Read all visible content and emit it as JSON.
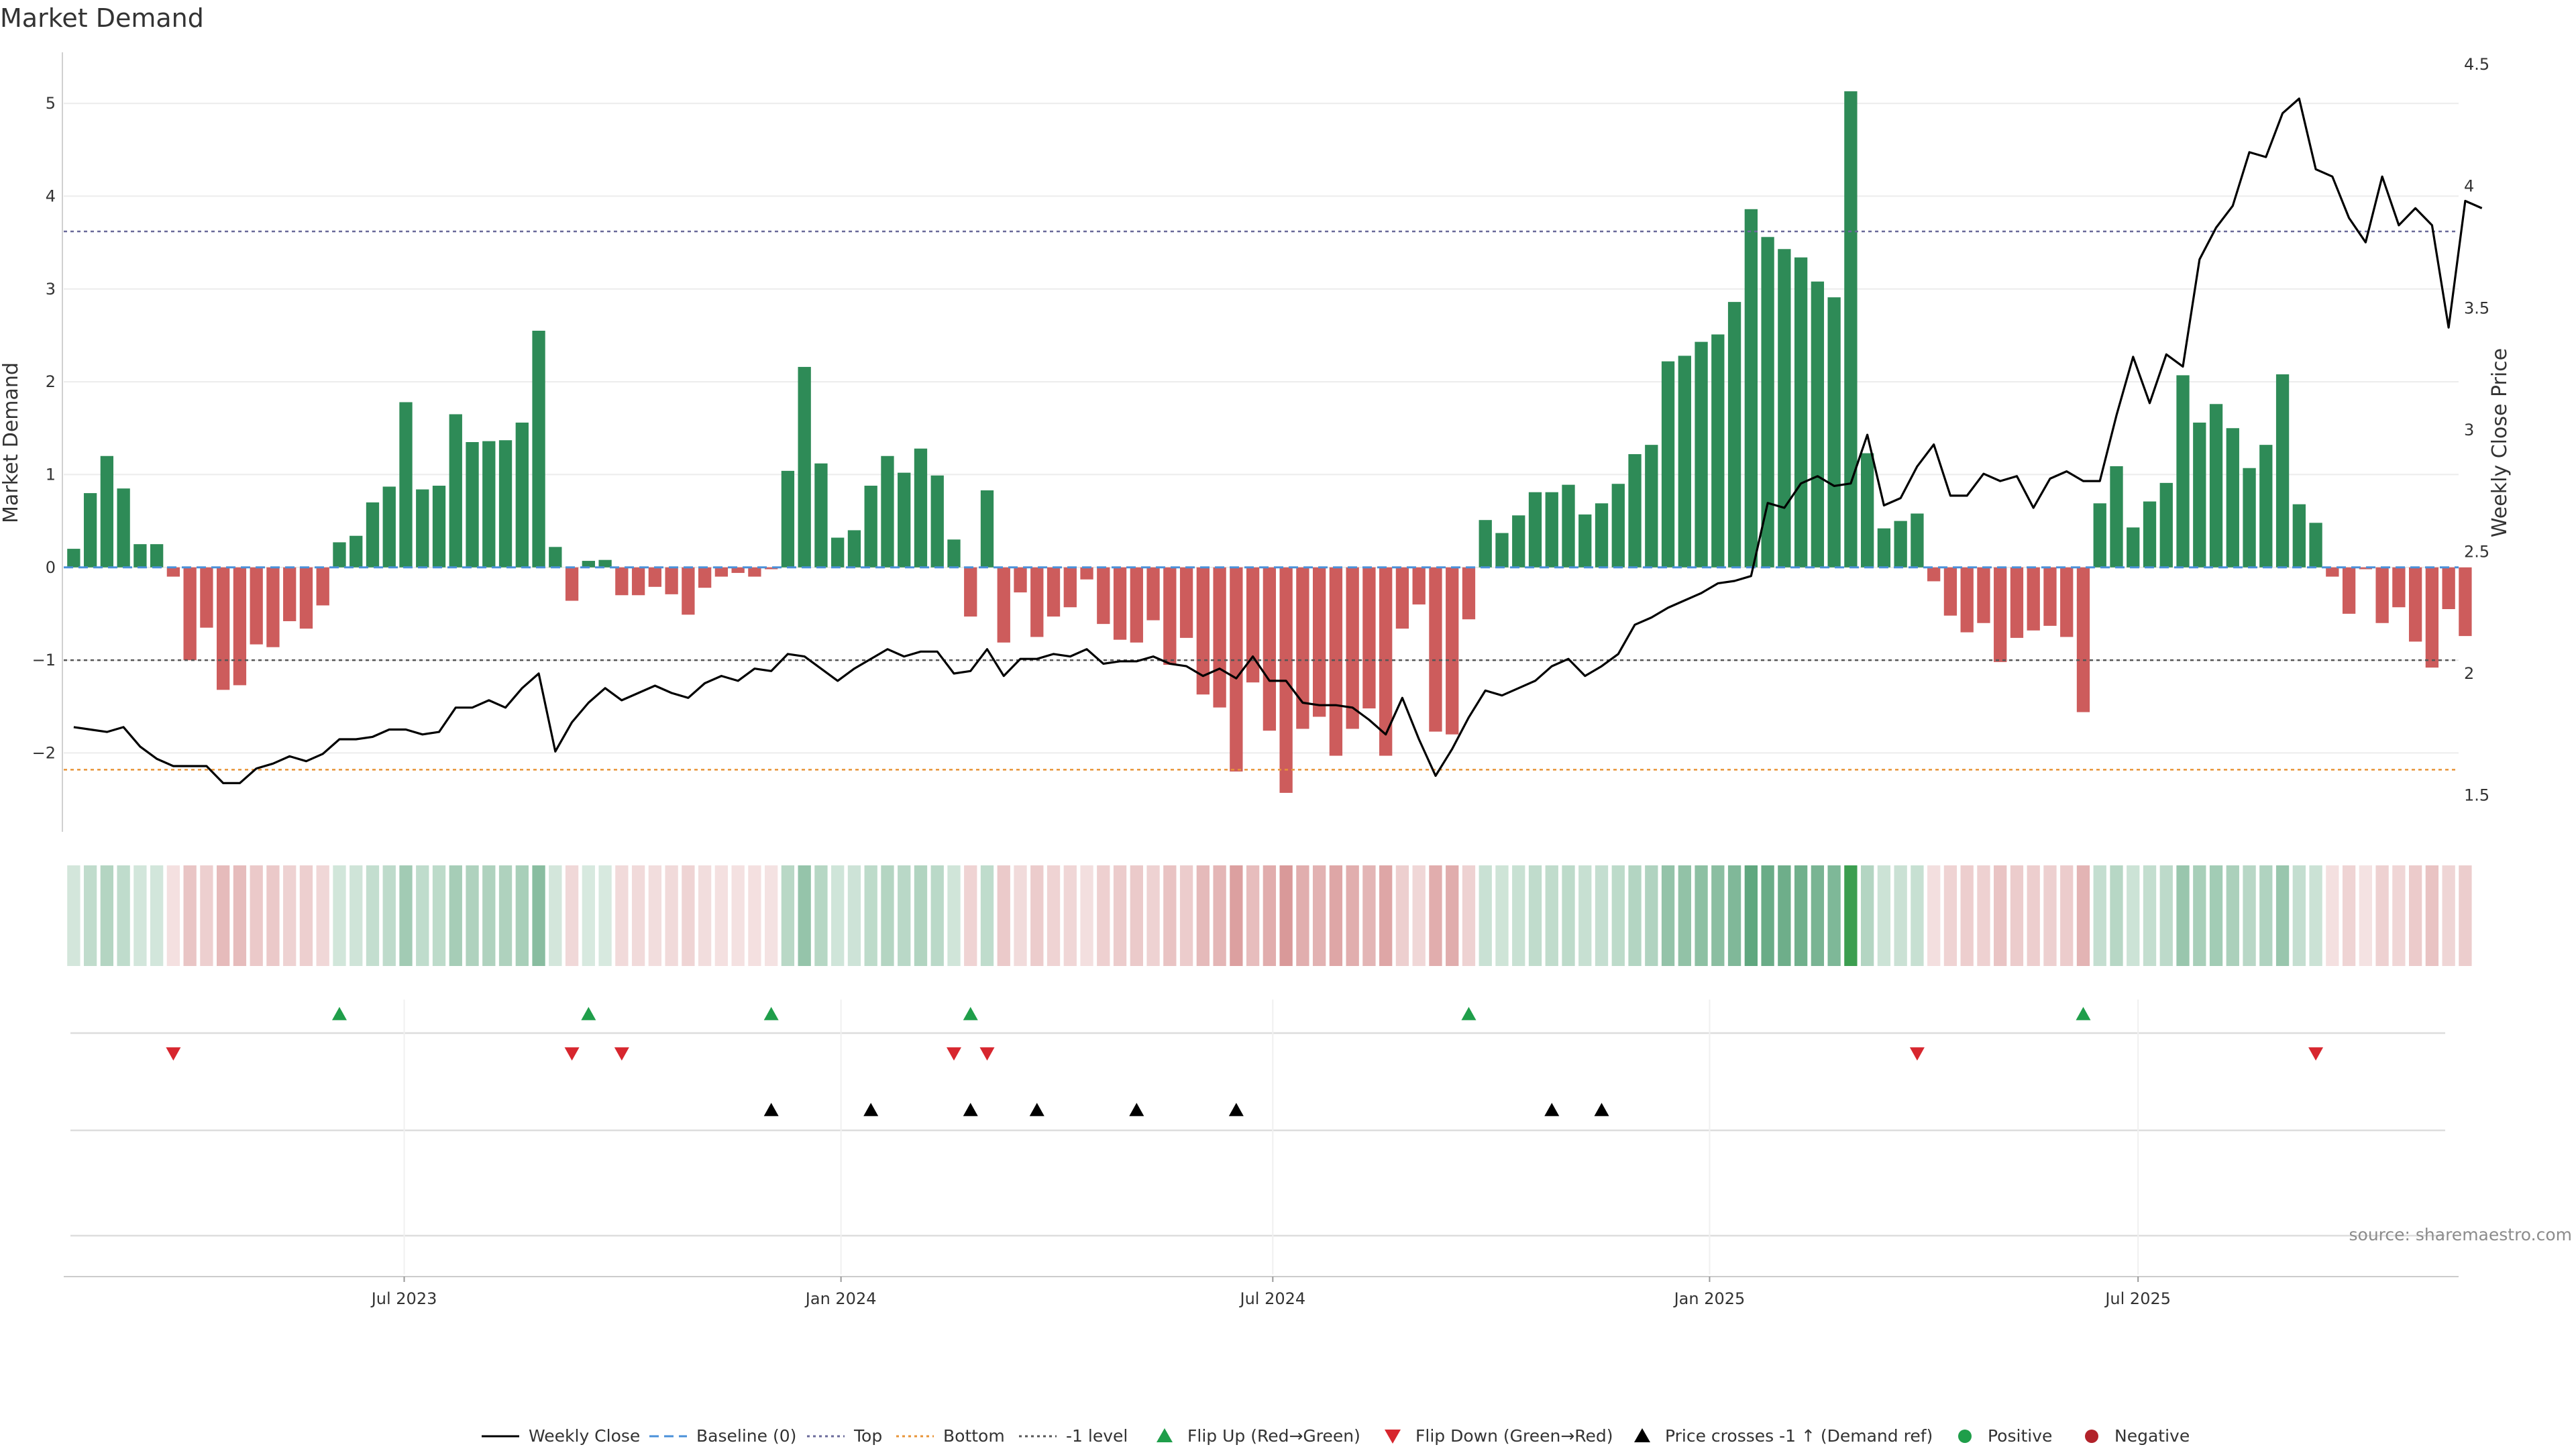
{
  "chart_data": {
    "type": "bar",
    "title": "Market Demand",
    "ylabel": "Market Demand",
    "y2label": "Weekly Close Price",
    "ylim": [
      -2.85,
      5.55
    ],
    "y2lim": [
      1.35,
      4.55
    ],
    "yticks": [
      5,
      4,
      3,
      2,
      1,
      0,
      -1,
      -2
    ],
    "ytick_labels": [
      "5",
      "4",
      "3",
      "2",
      "1",
      "0",
      "−1",
      "−2"
    ],
    "y2ticks": [
      4.5,
      4,
      3.5,
      3,
      2.5,
      2,
      1.5
    ],
    "y2tick_labels": [
      "4.5",
      "4",
      "3.5",
      "3",
      "2.5",
      "2",
      "1.5"
    ],
    "xlim_weeks": [
      -0.6,
      143.6
    ],
    "xticks": [
      {
        "label": "Jul 2023",
        "week": 19.9
      },
      {
        "label": "Jan 2024",
        "week": 46.2
      },
      {
        "label": "Jul 2024",
        "week": 72.2
      },
      {
        "label": "Jan 2025",
        "week": 98.5
      },
      {
        "label": "Jul 2025",
        "week": 124.3
      }
    ],
    "levels": {
      "top": 3.62,
      "bottom": -2.18,
      "minus_one": -1,
      "baseline": 0
    },
    "demand": [
      0.2,
      0.8,
      1.2,
      0.85,
      0.25,
      0.25,
      -0.1,
      -1.0,
      -0.65,
      -1.32,
      -1.27,
      -0.83,
      -0.86,
      -0.58,
      -0.66,
      -0.41,
      0.27,
      0.34,
      0.7,
      0.87,
      1.78,
      0.84,
      0.88,
      1.65,
      1.35,
      1.36,
      1.37,
      1.56,
      2.55,
      0.22,
      -0.36,
      0.07,
      0.08,
      -0.3,
      -0.3,
      -0.21,
      -0.29,
      -0.51,
      -0.22,
      -0.1,
      -0.06,
      -0.1,
      -0.02,
      1.04,
      2.16,
      1.12,
      0.32,
      0.4,
      0.88,
      1.2,
      1.02,
      1.28,
      0.99,
      0.3,
      -0.53,
      0.83,
      -0.81,
      -0.27,
      -0.75,
      -0.53,
      -0.43,
      -0.13,
      -0.61,
      -0.78,
      -0.81,
      -0.57,
      -1.05,
      -0.76,
      -1.37,
      -1.51,
      -2.2,
      -1.24,
      -1.76,
      -2.43,
      -1.74,
      -1.61,
      -2.03,
      -1.74,
      -1.52,
      -2.03,
      -0.66,
      -0.4,
      -1.77,
      -1.8,
      -0.56,
      0.51,
      0.37,
      0.56,
      0.81,
      0.81,
      0.89,
      0.57,
      0.69,
      0.9,
      1.22,
      1.32,
      2.22,
      2.28,
      2.43,
      2.51,
      2.86,
      3.86,
      3.56,
      3.43,
      3.34,
      3.08,
      2.91,
      5.13,
      1.23,
      0.42,
      0.5,
      0.58,
      -0.15,
      -0.52,
      -0.7,
      -0.6,
      -1.02,
      -0.76,
      -0.68,
      -0.63,
      -0.75,
      -1.56,
      0.69,
      1.09,
      0.43,
      0.71,
      0.91,
      2.07,
      1.56,
      1.76,
      1.5,
      1.07,
      1.32,
      2.08,
      0.68,
      0.48,
      -0.1,
      -0.5,
      -0.02,
      -0.6,
      -0.43,
      -0.8,
      -1.08,
      -0.45,
      -0.74
    ],
    "weekly_close": [
      1.78,
      1.77,
      1.76,
      1.78,
      1.7,
      1.65,
      1.62,
      1.62,
      1.62,
      1.55,
      1.55,
      1.61,
      1.63,
      1.66,
      1.64,
      1.67,
      1.73,
      1.73,
      1.74,
      1.77,
      1.77,
      1.75,
      1.76,
      1.86,
      1.86,
      1.89,
      1.86,
      1.94,
      2.0,
      1.68,
      1.8,
      1.88,
      1.94,
      1.89,
      1.92,
      1.95,
      1.92,
      1.9,
      1.96,
      1.99,
      1.97,
      2.02,
      2.01,
      2.08,
      2.07,
      2.02,
      1.97,
      2.02,
      2.06,
      2.1,
      2.07,
      2.09,
      2.09,
      2.0,
      2.01,
      2.1,
      1.99,
      2.06,
      2.06,
      2.08,
      2.07,
      2.1,
      2.04,
      2.05,
      2.05,
      2.07,
      2.04,
      2.03,
      1.99,
      2.02,
      1.98,
      2.07,
      1.97,
      1.97,
      1.88,
      1.87,
      1.87,
      1.86,
      1.81,
      1.75,
      1.9,
      1.73,
      1.58,
      1.69,
      1.82,
      1.93,
      1.91,
      1.94,
      1.97,
      2.03,
      2.06,
      1.99,
      2.03,
      2.08,
      2.2,
      2.23,
      2.27,
      2.3,
      2.33,
      2.37,
      2.38,
      2.4,
      2.7,
      2.68,
      2.78,
      2.81,
      2.77,
      2.78,
      2.98,
      2.69,
      2.72,
      2.85,
      2.94,
      2.73,
      2.73,
      2.82,
      2.79,
      2.81,
      2.68,
      2.8,
      2.83,
      2.79,
      2.79,
      3.06,
      3.3,
      3.11,
      3.31,
      3.26,
      3.7,
      3.83,
      3.92,
      4.14,
      4.12,
      4.3,
      4.36,
      4.07,
      4.04,
      3.87,
      3.77,
      4.04,
      3.84,
      3.91,
      3.84,
      3.42,
      3.94,
      3.91
    ],
    "flip_up_weeks": [
      16,
      31,
      42,
      54,
      84,
      121
    ],
    "flip_down_weeks": [
      6,
      30,
      33,
      53,
      55,
      111,
      135
    ],
    "price_cross_weeks": [
      42,
      48,
      54,
      58,
      64,
      70,
      89,
      92
    ],
    "legend": [
      {
        "label": "Weekly Close",
        "kind": "line",
        "color": "#000000"
      },
      {
        "label": "Baseline (0)",
        "kind": "dash",
        "color": "#4a90d9"
      },
      {
        "label": "Top",
        "kind": "dot",
        "color": "#6a6a9a"
      },
      {
        "label": "Bottom",
        "kind": "dot",
        "color": "#e89438"
      },
      {
        "label": "-1 level",
        "kind": "dot",
        "color": "#555555"
      },
      {
        "label": "Flip Up (Red→Green)",
        "kind": "tri-up",
        "color": "#1f9e4a"
      },
      {
        "label": "Flip Down (Green→Red)",
        "kind": "tri-down",
        "color": "#d7262e"
      },
      {
        "label": "Price crosses -1 ↑ (Demand ref)",
        "kind": "tri-up",
        "color": "#000000"
      },
      {
        "label": "Positive",
        "kind": "dot-marker",
        "color": "#1f9e4a"
      },
      {
        "label": "Negative",
        "kind": "dot-marker",
        "color": "#b2222a"
      }
    ],
    "source": "source: sharemaestro.com",
    "colors": {
      "positive": "#2e8b57",
      "negative": "#cd5c5c",
      "price_line": "#000000",
      "baseline": "#4a90d9",
      "top_level": "#6a6a9a",
      "bottom_level": "#e89438",
      "minus_one_level": "#555555",
      "flip_up": "#1f9e4a",
      "flip_down": "#d7262e",
      "price_cross": "#000000",
      "grid": "#ececec"
    }
  }
}
